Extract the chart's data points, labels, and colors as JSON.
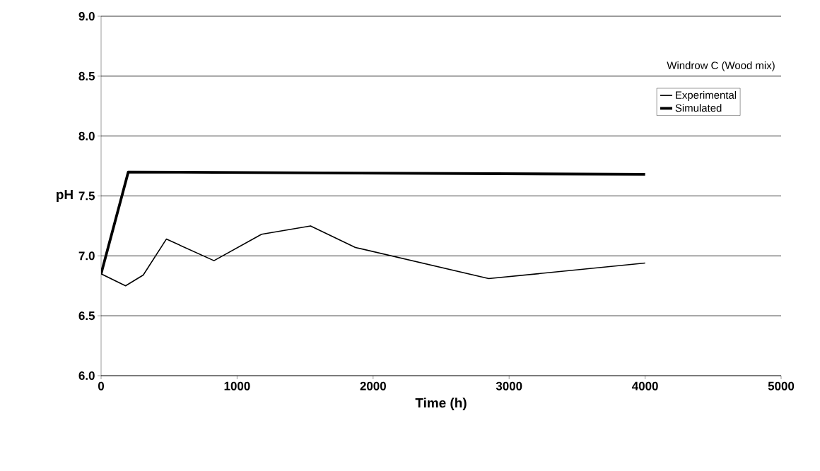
{
  "chart_data": {
    "type": "line",
    "xlabel": "Time (h)",
    "ylabel": "pH",
    "legend_title": "Windrow C (Wood mix)",
    "xlim": [
      0,
      5000
    ],
    "xticks": [
      0,
      1000,
      2000,
      3000,
      4000,
      5000
    ],
    "ylim": [
      6.0,
      9.0
    ],
    "yticks": [
      {
        "value": 6.0,
        "label": "6.0"
      },
      {
        "value": 6.5,
        "label": "6.5"
      },
      {
        "value": 7.0,
        "label": "7.0"
      },
      {
        "value": 7.5,
        "label": "7.5"
      },
      {
        "value": 8.0,
        "label": "8.0"
      },
      {
        "value": 8.5,
        "label": "8.5"
      },
      {
        "value": 9.0,
        "label": "9.0"
      }
    ],
    "grid": "y",
    "legend": "top right",
    "marker": "none",
    "series": [
      {
        "name": "Experimental",
        "color": "#000000",
        "x": [
          0,
          180,
          310,
          480,
          830,
          1180,
          1540,
          1870,
          2850,
          4000
        ],
        "values": [
          6.85,
          6.75,
          6.84,
          7.14,
          6.96,
          7.18,
          7.25,
          7.07,
          6.81,
          6.94
        ]
      },
      {
        "name": "Simulated",
        "color": "#000000",
        "x": [
          0,
          200,
          4000
        ],
        "values": [
          6.85,
          7.7,
          7.68
        ]
      }
    ]
  }
}
